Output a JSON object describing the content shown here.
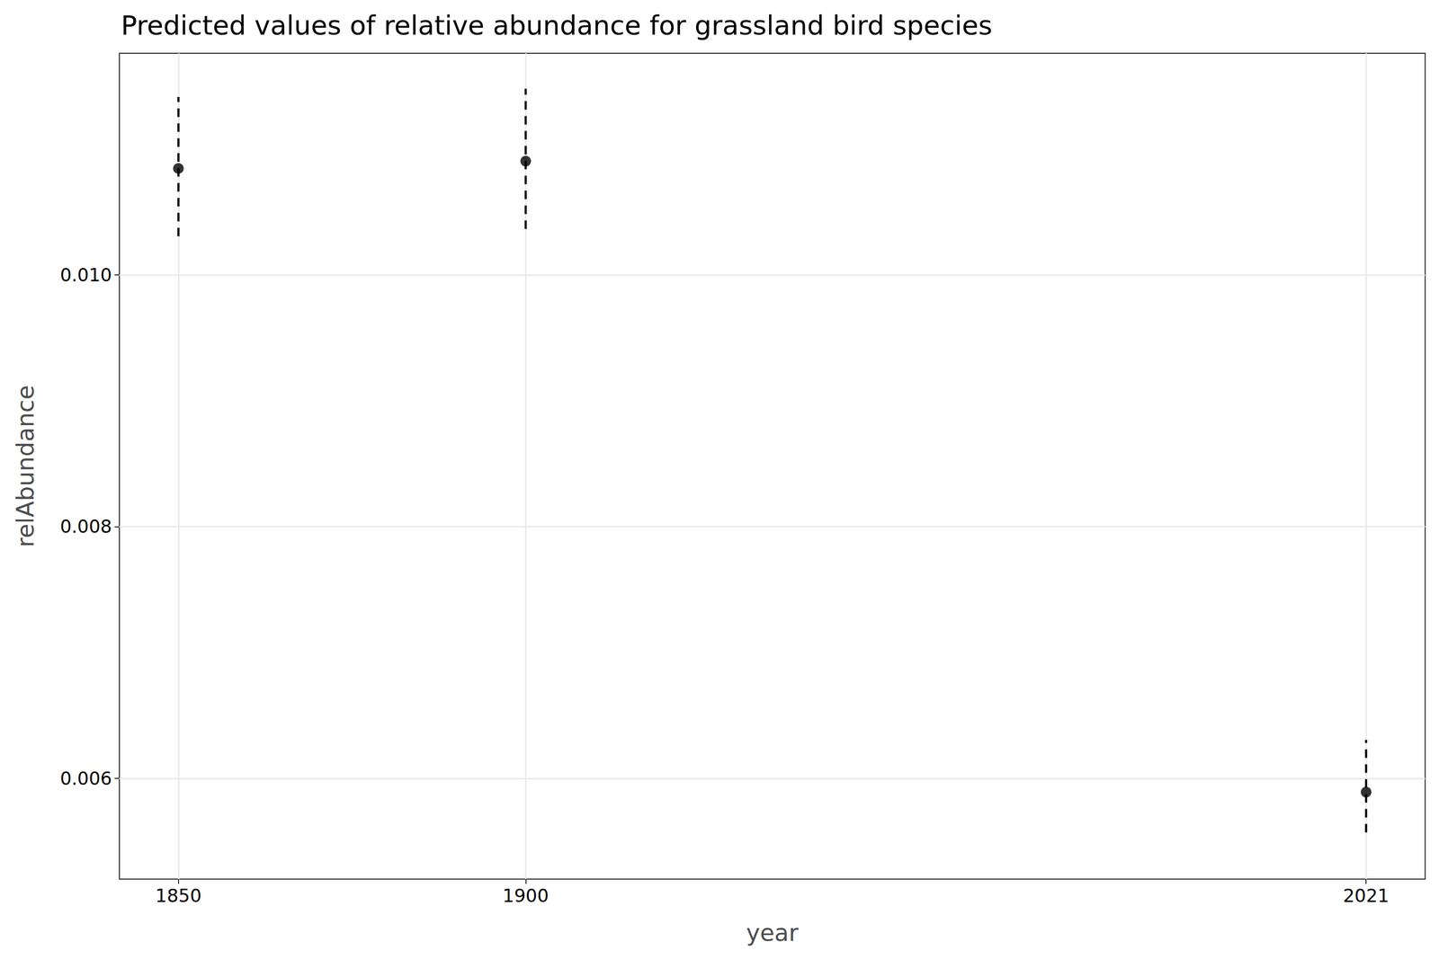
{
  "chart_data": {
    "type": "scatter",
    "title": "Predicted values of relative abundance for grassland bird species",
    "x_label": "year",
    "y_label": "relAbundance",
    "x": [
      1850,
      1900,
      2021
    ],
    "values": [
      0.010845,
      0.010903,
      0.005891
    ],
    "ci_lower": [
      0.010306,
      0.010364,
      0.00557
    ],
    "ci_upper": [
      0.011413,
      0.011479,
      0.006306
    ],
    "color": "#000000",
    "marker": "circle",
    "line_style": "dashed",
    "xlim": [
      1841.5,
      2029.5
    ],
    "xticks": [
      1850,
      1900,
      2021
    ],
    "ylim": [
      0.0052,
      0.01176
    ],
    "yticks": [
      {
        "value": 0.006,
        "label": "0.006"
      },
      {
        "value": 0.008,
        "label": "0.008"
      },
      {
        "value": 0.01,
        "label": "0.010"
      }
    ],
    "grid": true
  }
}
